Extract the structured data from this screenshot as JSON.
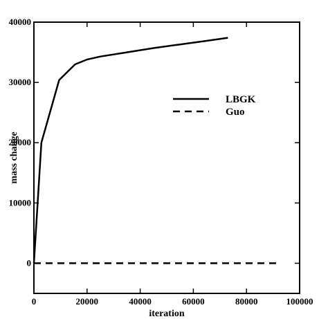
{
  "chart_data": {
    "type": "line",
    "xlabel": "iteration",
    "ylabel": "mass change",
    "xlim": [
      0,
      100000
    ],
    "ylim": [
      -5000,
      40000
    ],
    "x_ticks": [
      {
        "value": 0,
        "label": "0"
      },
      {
        "value": 20000,
        "label": "20000"
      },
      {
        "value": 40000,
        "label": "40000"
      },
      {
        "value": 60000,
        "label": "60000"
      },
      {
        "value": 80000,
        "label": "80000"
      },
      {
        "value": 100000,
        "label": "100000"
      }
    ],
    "y_ticks": [
      {
        "value": 0,
        "label": "0"
      },
      {
        "value": 10000,
        "label": "10000"
      },
      {
        "value": 20000,
        "label": "20000"
      },
      {
        "value": 30000,
        "label": "30000"
      },
      {
        "value": 40000,
        "label": "40000"
      }
    ],
    "legend_position": "upper-right",
    "grid": false,
    "series": [
      {
        "name": "LBGK",
        "style": "solid",
        "color": "#000000",
        "x": [
          0,
          2800,
          9500,
          15500,
          20000,
          25000,
          35000,
          45000,
          55000,
          65000,
          73000
        ],
        "y": [
          0,
          20000,
          30400,
          33000,
          33800,
          34300,
          35000,
          35700,
          36300,
          36900,
          37400
        ]
      },
      {
        "name": "Guo",
        "style": "dashed",
        "color": "#000000",
        "x": [
          0,
          92000
        ],
        "y": [
          0,
          0
        ]
      }
    ]
  }
}
